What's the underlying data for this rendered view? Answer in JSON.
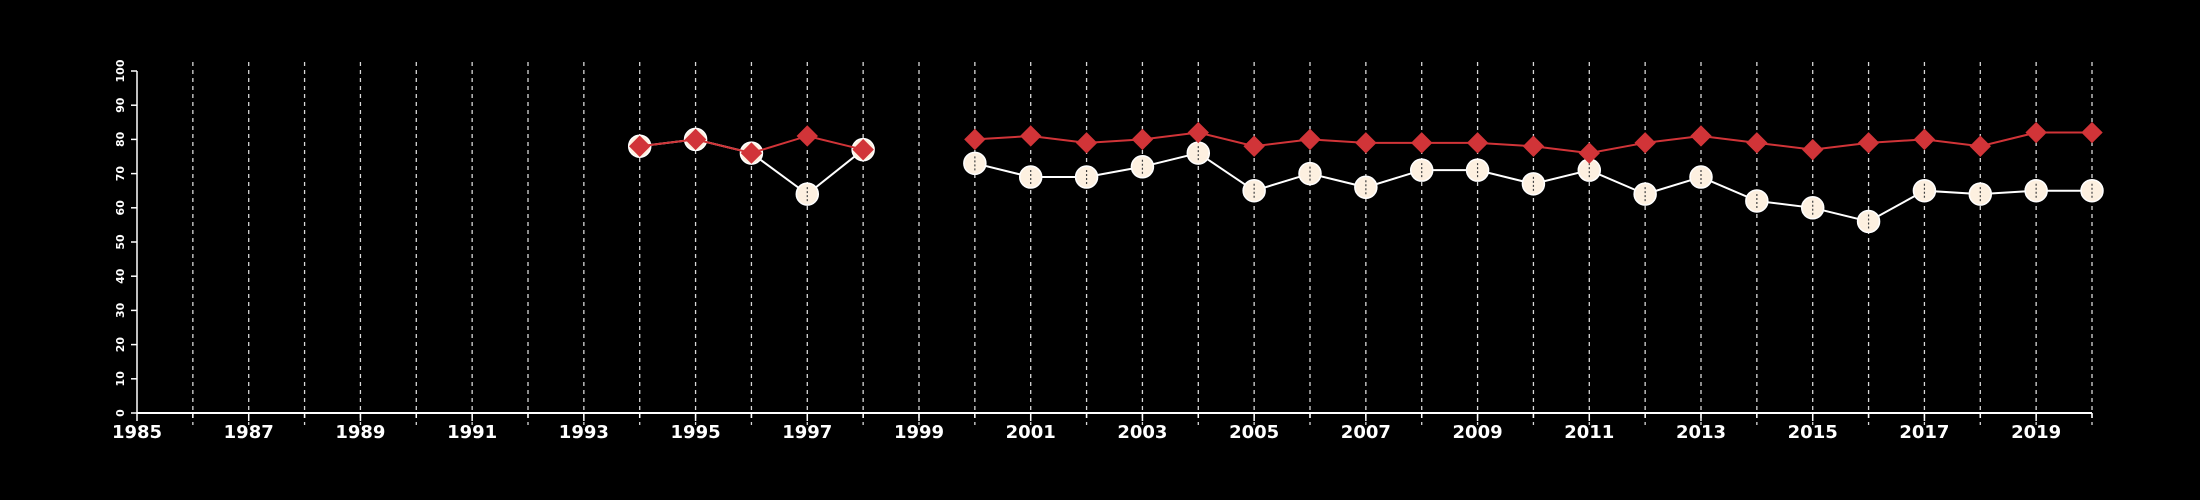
{
  "chart_data": {
    "type": "line",
    "title": "",
    "xlabel": "",
    "ylabel": "",
    "xlim": [
      1985,
      2020
    ],
    "ylim": [
      0,
      100
    ],
    "yticks": [
      0,
      10,
      20,
      30,
      40,
      50,
      60,
      70,
      80,
      90,
      100
    ],
    "xtick_labels": [
      1985,
      1987,
      1989,
      1991,
      1993,
      1995,
      1997,
      1999,
      2001,
      2003,
      2005,
      2007,
      2009,
      2011,
      2013,
      2015,
      2017,
      2019
    ],
    "grid": {
      "vertical": true,
      "every_year": true,
      "dashed": true
    },
    "legend": "none",
    "series": [
      {
        "marker": "diamond",
        "color": "#d13438",
        "points": [
          [
            1994,
            78
          ],
          [
            1995,
            80
          ],
          [
            1996,
            76
          ],
          [
            1997,
            81
          ],
          [
            1998,
            77
          ],
          [
            2000,
            80
          ],
          [
            2001,
            81
          ],
          [
            2002,
            79
          ],
          [
            2003,
            80
          ],
          [
            2004,
            82
          ],
          [
            2005,
            78
          ],
          [
            2006,
            80
          ],
          [
            2007,
            79
          ],
          [
            2008,
            79
          ],
          [
            2009,
            79
          ],
          [
            2010,
            78
          ],
          [
            2011,
            76
          ],
          [
            2012,
            79
          ],
          [
            2013,
            81
          ],
          [
            2014,
            79
          ],
          [
            2015,
            77
          ],
          [
            2016,
            79
          ],
          [
            2017,
            80
          ],
          [
            2018,
            78
          ],
          [
            2019,
            82
          ],
          [
            2020,
            82
          ]
        ],
        "segments": [
          [
            1994,
            1998
          ],
          [
            2000,
            2020
          ]
        ]
      },
      {
        "marker": "circle",
        "color": "#fdf0e0",
        "points": [
          [
            1994,
            78
          ],
          [
            1995,
            80
          ],
          [
            1996,
            76
          ],
          [
            1997,
            64
          ],
          [
            1998,
            77
          ],
          [
            2000,
            73
          ],
          [
            2001,
            69
          ],
          [
            2002,
            69
          ],
          [
            2003,
            72
          ],
          [
            2004,
            76
          ],
          [
            2005,
            65
          ],
          [
            2006,
            70
          ],
          [
            2007,
            66
          ],
          [
            2008,
            71
          ],
          [
            2009,
            71
          ],
          [
            2010,
            67
          ],
          [
            2011,
            71
          ],
          [
            2012,
            64
          ],
          [
            2013,
            69
          ],
          [
            2014,
            62
          ],
          [
            2015,
            60
          ],
          [
            2016,
            56
          ],
          [
            2017,
            65
          ],
          [
            2018,
            64
          ],
          [
            2019,
            65
          ],
          [
            2020,
            65
          ]
        ],
        "segments": [
          [
            1994,
            1998
          ],
          [
            2000,
            2020
          ]
        ]
      }
    ]
  }
}
